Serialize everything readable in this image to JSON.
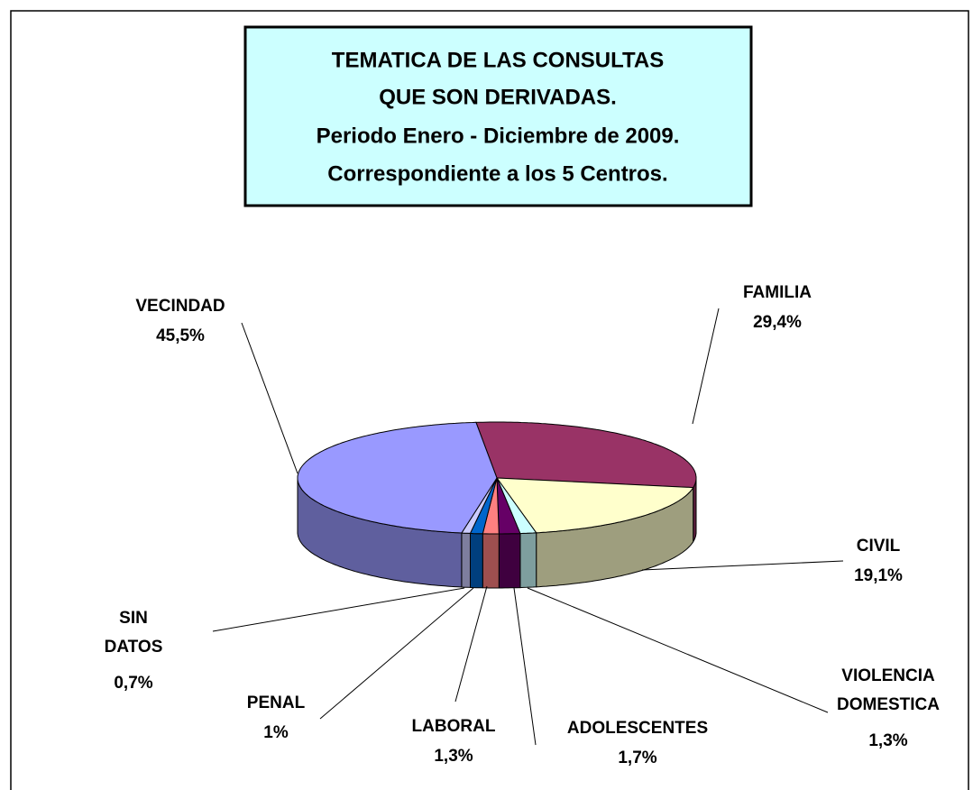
{
  "chart_data": {
    "type": "pie3d",
    "title": [
      "TEMATICA DE LAS CONSULTAS",
      "QUE SON DERIVADAS."
    ],
    "subtitle": [
      "Periodo Enero - Diciembre de 2009.",
      "Correspondiente a los 5 Centros."
    ],
    "categories": [
      "FAMILIA",
      "CIVIL",
      "VIOLENCIA DOMESTICA",
      "ADOLESCENTES",
      "LABORAL",
      "PENAL",
      "SIN DATOS",
      "VECINDAD"
    ],
    "values": [
      29.4,
      19.1,
      1.3,
      1.7,
      1.3,
      1,
      0.7,
      45.5
    ],
    "value_labels": [
      "29,4%",
      "19,1%",
      "1,3%",
      "1,7%",
      "1,3%",
      "1%",
      "0,7%",
      "45,5%"
    ],
    "colors": [
      "#993366",
      "#ffffcc",
      "#ccffff",
      "#660066",
      "#ff8080",
      "#0066cc",
      "#ccccff",
      "#9999ff"
    ]
  }
}
